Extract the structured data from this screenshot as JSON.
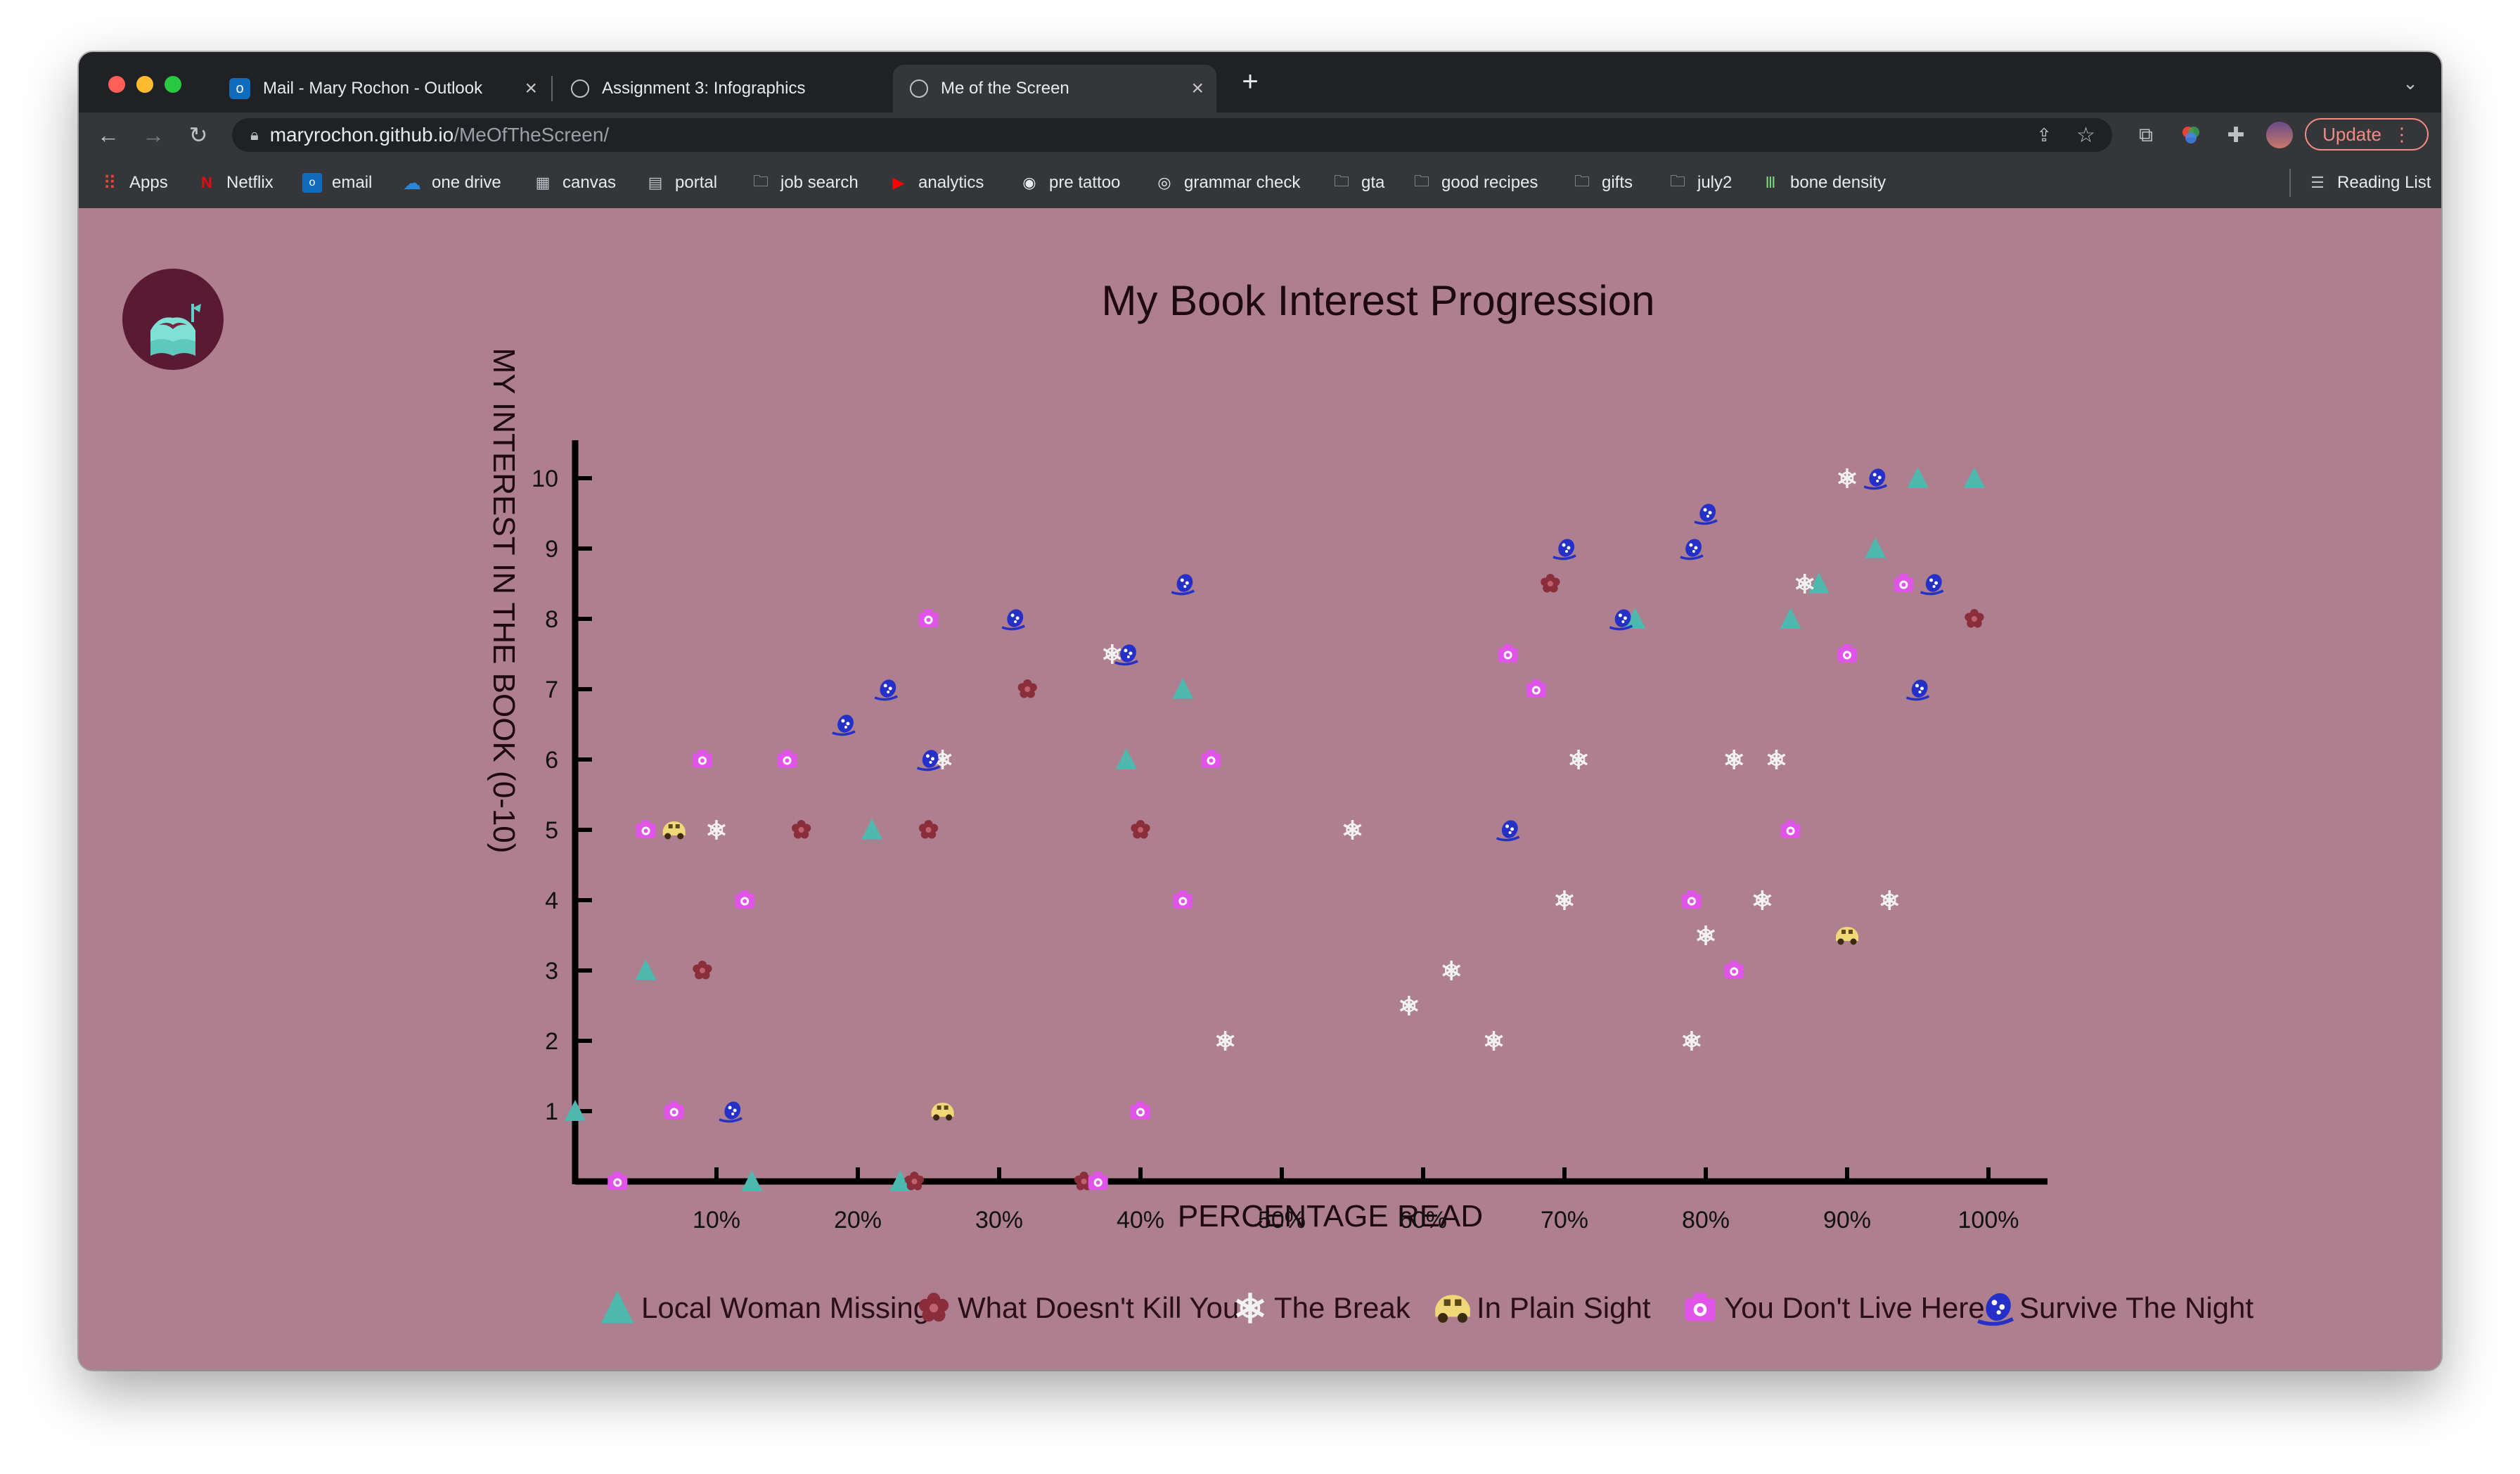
{
  "browser": {
    "tabs": [
      {
        "title": "Mail - Mary Rochon - Outlook",
        "icon": "outlook-icon"
      },
      {
        "title": "Assignment 3: Infographics",
        "icon": "globe-icon"
      },
      {
        "title": "Me of the Screen",
        "icon": "globe-icon",
        "active": true
      }
    ],
    "new_tab": "+",
    "url_host": "maryrochon.github.io",
    "url_path": "/MeOfTheScreen/",
    "update_label": "Update",
    "bookmarks": [
      {
        "label": "Apps",
        "icon": "apps-grid-icon"
      },
      {
        "label": "Netflix",
        "icon": "netflix-icon"
      },
      {
        "label": "email",
        "icon": "outlook-icon"
      },
      {
        "label": "one drive",
        "icon": "onedrive-icon"
      },
      {
        "label": "canvas",
        "icon": "canvas-icon"
      },
      {
        "label": "portal",
        "icon": "portal-icon"
      },
      {
        "label": "job search",
        "icon": "folder-icon"
      },
      {
        "label": "analytics",
        "icon": "youtube-icon"
      },
      {
        "label": "pre tattoo",
        "icon": "circle-icon"
      },
      {
        "label": "grammar check",
        "icon": "grammarly-icon"
      },
      {
        "label": "gta",
        "icon": "folder-icon"
      },
      {
        "label": "good recipes",
        "icon": "folder-icon"
      },
      {
        "label": "gifts",
        "icon": "folder-icon"
      },
      {
        "label": "july2",
        "icon": "folder-icon"
      },
      {
        "label": "bone density",
        "icon": "bone-density-icon"
      }
    ],
    "reading_list": "Reading List",
    "colors": {
      "tabbar": "#202124",
      "toolbar": "#35363a",
      "update": "#f28b82"
    }
  },
  "chart_data": {
    "type": "scatter",
    "title": "My Book Interest Progression",
    "xlabel": "PERCENTAGE READ",
    "ylabel": "MY INTEREST IN THE BOOK (0-10)",
    "xlim": [
      0,
      100
    ],
    "ylim": [
      0,
      10
    ],
    "xticks": [
      "10%",
      "20%",
      "30%",
      "40%",
      "50%",
      "60%",
      "70%",
      "80%",
      "90%",
      "100%"
    ],
    "yticks": [
      "1",
      "2",
      "3",
      "4",
      "5",
      "6",
      "7",
      "8",
      "9",
      "10"
    ],
    "grid": false,
    "legend_position": "bottom",
    "background": "#ae7f8e",
    "series": [
      {
        "name": "Local Woman Missing",
        "marker": "triangle",
        "color": "#4fb8ae",
        "points": [
          [
            0,
            1
          ],
          [
            5,
            3
          ],
          [
            12.5,
            0
          ],
          [
            21,
            5
          ],
          [
            23,
            0
          ],
          [
            39,
            6
          ],
          [
            43,
            7
          ],
          [
            75,
            8
          ],
          [
            86,
            8
          ],
          [
            88,
            8.5
          ],
          [
            92,
            9
          ],
          [
            95,
            10
          ],
          [
            99,
            10
          ]
        ]
      },
      {
        "name": "What Doesn't Kill You",
        "marker": "flower",
        "color": "#8b2e3c",
        "points": [
          [
            9,
            3
          ],
          [
            16,
            5
          ],
          [
            25,
            5
          ],
          [
            24,
            0
          ],
          [
            32,
            7
          ],
          [
            36,
            0
          ],
          [
            40,
            5
          ],
          [
            69,
            8.5
          ],
          [
            99,
            8
          ]
        ]
      },
      {
        "name": "The Break",
        "marker": "snowflake",
        "color": "#f2f2f2",
        "points": [
          [
            10,
            5
          ],
          [
            26,
            6
          ],
          [
            38,
            7.5
          ],
          [
            46,
            2
          ],
          [
            55,
            5
          ],
          [
            59,
            2.5
          ],
          [
            62,
            3
          ],
          [
            65,
            2
          ],
          [
            70,
            4
          ],
          [
            71,
            6
          ],
          [
            79,
            2
          ],
          [
            80,
            3.5
          ],
          [
            82,
            6
          ],
          [
            84,
            4
          ],
          [
            85,
            6
          ],
          [
            87,
            8.5
          ],
          [
            90,
            10
          ],
          [
            93,
            4
          ]
        ]
      },
      {
        "name": "In Plain Sight",
        "marker": "car",
        "color": "#f0d878",
        "points": [
          [
            7,
            5
          ],
          [
            26,
            1
          ],
          [
            90,
            3.5
          ]
        ]
      },
      {
        "name": "You Don't Live Here",
        "marker": "camera",
        "color": "#e055e8",
        "points": [
          [
            3,
            0
          ],
          [
            5,
            5
          ],
          [
            7,
            1
          ],
          [
            9,
            6
          ],
          [
            12,
            4
          ],
          [
            15,
            6
          ],
          [
            25,
            8
          ],
          [
            37,
            0
          ],
          [
            40,
            1
          ],
          [
            43,
            4
          ],
          [
            45,
            6
          ],
          [
            66,
            7.5
          ],
          [
            68,
            7
          ],
          [
            79,
            4
          ],
          [
            82,
            3
          ],
          [
            86,
            5
          ],
          [
            90,
            7.5
          ],
          [
            94,
            8.5
          ]
        ]
      },
      {
        "name": "Survive The Night",
        "marker": "mask",
        "color": "#2430c8",
        "points": [
          [
            11,
            1
          ],
          [
            19,
            6.5
          ],
          [
            22,
            7
          ],
          [
            25,
            6
          ],
          [
            31,
            8
          ],
          [
            39,
            7.5
          ],
          [
            43,
            8.5
          ],
          [
            66,
            5
          ],
          [
            70,
            9
          ],
          [
            74,
            8
          ],
          [
            79,
            9
          ],
          [
            80,
            9.5
          ],
          [
            92,
            10
          ],
          [
            95,
            7
          ],
          [
            96,
            8.5
          ]
        ]
      }
    ]
  }
}
